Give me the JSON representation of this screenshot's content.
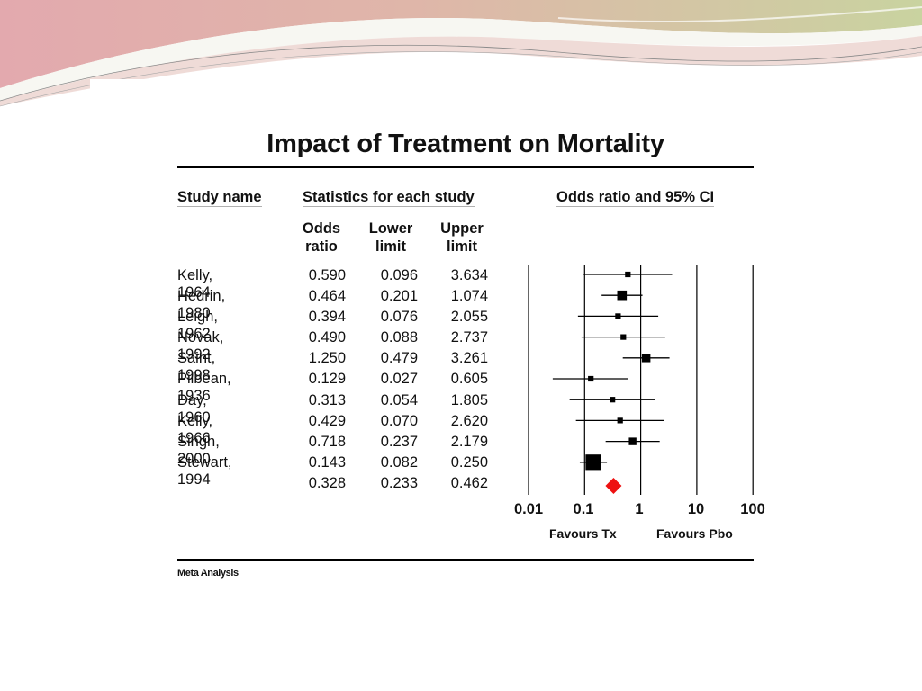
{
  "slide": {
    "title": "Impact of Treatment on Mortality",
    "footer": "Meta Analysis",
    "colors": {
      "square": "#000000",
      "summary_diamond": "#ee1111",
      "banner_pink": "#e0a3a8",
      "banner_green": "#c9d6a3"
    }
  },
  "table": {
    "headers": {
      "study": "Study name",
      "statistics": "Statistics for each study",
      "plot": "Odds ratio and 95% CI"
    },
    "subheaders": {
      "odds": [
        "Odds",
        "ratio"
      ],
      "lower": [
        "Lower",
        "limit"
      ],
      "upper": [
        "Upper",
        "limit"
      ]
    },
    "rows": [
      {
        "study": "Kelly, 1964",
        "odds": "0.590",
        "lower": "0.096",
        "upper": "3.634"
      },
      {
        "study": "Hedrin, 1980",
        "odds": "0.464",
        "lower": "0.201",
        "upper": "1.074"
      },
      {
        "study": "Leigh, 1962",
        "odds": "0.394",
        "lower": "0.076",
        "upper": "2.055"
      },
      {
        "study": "Novak, 1992",
        "odds": "0.490",
        "lower": "0.088",
        "upper": "2.737"
      },
      {
        "study": "Saint, 1998",
        "odds": "1.250",
        "lower": "0.479",
        "upper": "3.261"
      },
      {
        "study": "Pilbean, 1936",
        "odds": "0.129",
        "lower": "0.027",
        "upper": "0.605"
      },
      {
        "study": "Day, 1960",
        "odds": "0.313",
        "lower": "0.054",
        "upper": "1.805"
      },
      {
        "study": "Kelly, 1966",
        "odds": "0.429",
        "lower": "0.070",
        "upper": "2.620"
      },
      {
        "study": "Singh, 2000",
        "odds": "0.718",
        "lower": "0.237",
        "upper": "2.179"
      },
      {
        "study": "Stewart, 1994",
        "odds": "0.143",
        "lower": "0.082",
        "upper": "0.250"
      }
    ],
    "summary": {
      "odds": "0.328",
      "lower": "0.233",
      "upper": "0.462"
    }
  },
  "chart_data": {
    "type": "forest",
    "scale": "log",
    "xlim": [
      0.01,
      100
    ],
    "x_ticks": [
      "0.01",
      "0.1",
      "1",
      "10",
      "100"
    ],
    "x_tick_values": [
      0.01,
      0.1,
      1,
      10,
      100
    ],
    "favours_left": "Favours Tx",
    "favours_right": "Favours Pbo",
    "studies": [
      {
        "name": "Kelly, 1964",
        "or": 0.59,
        "lower": 0.096,
        "upper": 3.634,
        "weight": 1
      },
      {
        "name": "Hedrin, 1980",
        "or": 0.464,
        "lower": 0.201,
        "upper": 1.074,
        "weight": 3
      },
      {
        "name": "Leigh, 1962",
        "or": 0.394,
        "lower": 0.076,
        "upper": 2.055,
        "weight": 1
      },
      {
        "name": "Novak, 1992",
        "or": 0.49,
        "lower": 0.088,
        "upper": 2.737,
        "weight": 1
      },
      {
        "name": "Saint, 1998",
        "or": 1.25,
        "lower": 0.479,
        "upper": 3.261,
        "weight": 2.5
      },
      {
        "name": "Pilbean, 1936",
        "or": 0.129,
        "lower": 0.027,
        "upper": 0.605,
        "weight": 1
      },
      {
        "name": "Day, 1960",
        "or": 0.313,
        "lower": 0.054,
        "upper": 1.805,
        "weight": 1
      },
      {
        "name": "Kelly, 1966",
        "or": 0.429,
        "lower": 0.07,
        "upper": 2.62,
        "weight": 1
      },
      {
        "name": "Singh, 2000",
        "or": 0.718,
        "lower": 0.237,
        "upper": 2.179,
        "weight": 2
      },
      {
        "name": "Stewart, 1994",
        "or": 0.143,
        "lower": 0.082,
        "upper": 0.25,
        "weight": 6
      }
    ],
    "summary": {
      "or": 0.328,
      "lower": 0.233,
      "upper": 0.462
    }
  }
}
